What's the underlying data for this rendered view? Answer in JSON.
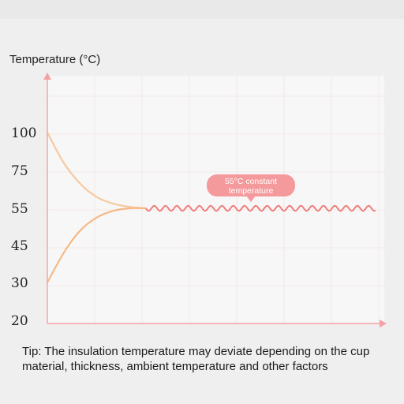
{
  "chart_data": {
    "type": "line",
    "ylabel": "Temperature (°C)",
    "y_ticks": [
      20,
      30,
      45,
      55,
      75,
      100
    ],
    "grid": true,
    "series": [
      {
        "values_description_free": true,
        "x": [
          0,
          0.5,
          1,
          1.5,
          2,
          2.5,
          3
        ],
        "y": [
          100,
          80,
          68,
          61,
          57.5,
          55.8,
          55
        ]
      },
      {
        "x": [
          0,
          0.5,
          1,
          1.5,
          2,
          2.5,
          3
        ],
        "y": [
          30,
          42,
          49,
          52.5,
          54.3,
          55,
          55
        ]
      },
      {
        "x": [
          3,
          10
        ],
        "y": [
          55,
          55
        ]
      }
    ],
    "annotations": [
      {
        "text": "55°C constant temperature",
        "line1": "55°C constant",
        "line2": "temperature"
      }
    ]
  },
  "tip": "Tip: The insulation temperature may deviate depending on the cup material, thickness, ambient temperature and other factors",
  "colors": {
    "axis": "#f4a0a4",
    "grid": "#f3dcdc",
    "cooling": "#f7c9a0",
    "warming": "#f5b985",
    "steady": "#ef7f7c",
    "badge": "#f59a9c"
  }
}
